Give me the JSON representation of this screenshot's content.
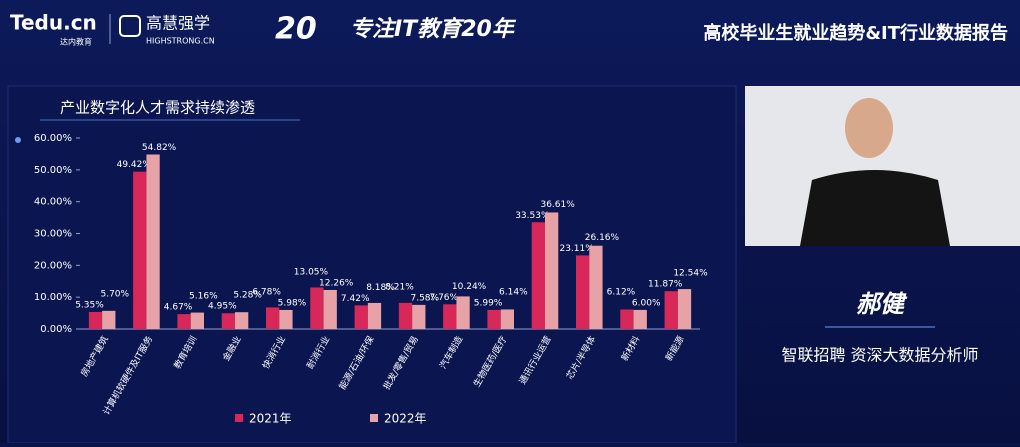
{
  "header": {
    "logo": "Tedu.cn",
    "logo_sub": "达内教育",
    "brand": "高慧强学",
    "brand_sub": "HIGHSTRONG.CN",
    "slogan": "专注IT教育20年",
    "report_title": "高校毕业生就业趋势&IT行业数据报告"
  },
  "speaker": {
    "name": "郝健",
    "role": "智联招聘 资深大数据分析师"
  },
  "chart_data": {
    "type": "bar",
    "title": "产业数字化人才需求持续渗透",
    "categories": [
      "房地产建筑",
      "计算机软硬件及IT服务",
      "教育培训",
      "金融业",
      "快消行业",
      "耐消行业",
      "能源/石油/环保",
      "批发/零售/贸易",
      "汽车制造",
      "生物医药/医疗",
      "通讯行业运营",
      "芯片/半导体",
      "新材料",
      "新能源"
    ],
    "series": [
      {
        "name": "2021年",
        "color": "#d8285a",
        "values": [
          5.35,
          49.42,
          4.67,
          4.95,
          6.78,
          13.05,
          7.42,
          8.21,
          7.76,
          5.99,
          33.53,
          23.11,
          6.12,
          11.87
        ],
        "value_labels": [
          "5.35%",
          "49.42%",
          "4.67%",
          "4.95%",
          "6.78%",
          "13.05%",
          "7.42%",
          "8.21%",
          "7.76%",
          "5.99%",
          "33.53%",
          "23.11%",
          "6.12%",
          "11.87%"
        ]
      },
      {
        "name": "2022年",
        "color": "#e6a2a6",
        "values": [
          5.7,
          54.82,
          5.16,
          5.28,
          5.98,
          12.26,
          8.18,
          7.58,
          10.24,
          6.14,
          36.61,
          26.16,
          6.0,
          12.54
        ],
        "value_labels": [
          "5.70%",
          "54.82%",
          "5.16%",
          "5.28%",
          "5.98%",
          "12.26%",
          "8.18%",
          "7.58%",
          "10.24%",
          "6.14%",
          "36.61%",
          "26.16%",
          "6.00%",
          "12.54%"
        ]
      }
    ],
    "ylim": [
      0,
      60
    ],
    "yticks": [
      {
        "value": 0,
        "label": "0.00%"
      },
      {
        "value": 10,
        "label": "10.00%"
      },
      {
        "value": 20,
        "label": "20.00%"
      },
      {
        "value": 30,
        "label": "30.00%"
      },
      {
        "value": 40,
        "label": "40.00%"
      },
      {
        "value": 50,
        "label": "50.00%"
      },
      {
        "value": 60,
        "label": "60.00%"
      }
    ],
    "grid": false
  }
}
